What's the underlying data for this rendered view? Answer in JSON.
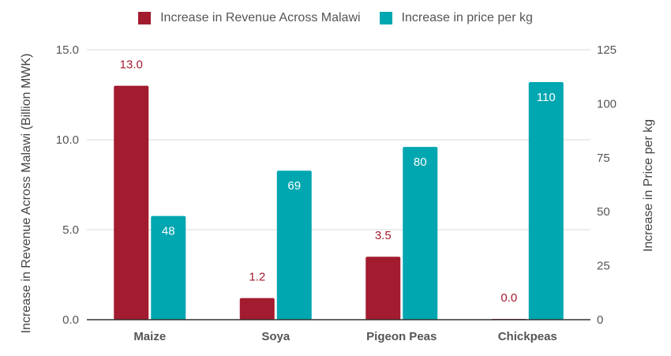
{
  "chart_data": {
    "type": "bar",
    "categories": [
      "Maize",
      "Soya",
      "Pigeon Peas",
      "Chickpeas"
    ],
    "series": [
      {
        "name": "Increase in Revenue Across Malawi",
        "axis": "left",
        "color": "#a31b2f",
        "values": [
          13.0,
          1.2,
          3.5,
          0.0
        ],
        "labels": [
          "13.0",
          "1.2",
          "3.5",
          "0.0"
        ]
      },
      {
        "name": "Increase in price per kg",
        "axis": "right",
        "color": "#00a6b0",
        "values": [
          48,
          69,
          80,
          110
        ],
        "labels": [
          "48",
          "69",
          "80",
          "110"
        ]
      }
    ],
    "y_left": {
      "label": "Increase in Revenue Across Malawi (Billion MWK)",
      "ylim": [
        0,
        15
      ],
      "ticks": [
        "0.0",
        "5.0",
        "10.0",
        "15.0"
      ]
    },
    "y_right": {
      "label": "Increase in Price per kg",
      "ylim": [
        0,
        125
      ],
      "ticks": [
        "0",
        "25",
        "50",
        "75",
        "100",
        "125"
      ]
    },
    "grid": true,
    "legend_position": "top-center"
  }
}
